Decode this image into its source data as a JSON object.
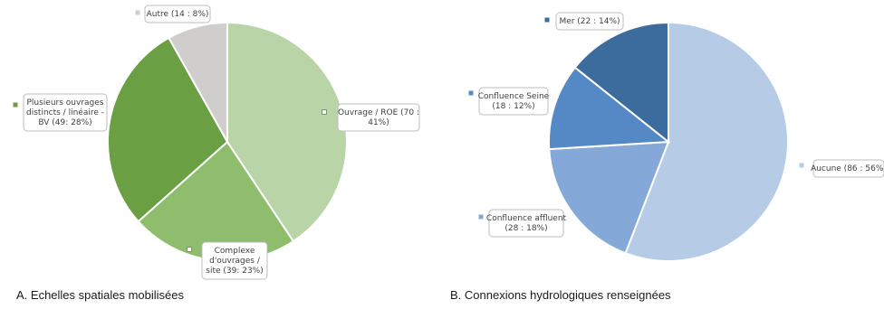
{
  "chart_data": [
    {
      "type": "pie",
      "title": "",
      "caption": "A. Echelles spatiales mobilisées",
      "slices": [
        {
          "label": "Ouvrage / ROE (70 : 41%)",
          "value": 70,
          "percent": 41,
          "color": "#b9d5a8"
        },
        {
          "label": "Complexe d'ouvrages / site (39: 23%)",
          "value": 39,
          "percent": 23,
          "color": "#8ebd6e"
        },
        {
          "label": "Plusieurs ouvrages distincts / linéaire - BV (49: 28%)",
          "value": 49,
          "percent": 28,
          "color": "#6a9f43"
        },
        {
          "label": "Autre (14 : 8%)",
          "value": 14,
          "percent": 8,
          "color": "#d0cecd"
        }
      ]
    },
    {
      "type": "pie",
      "title": "",
      "caption": "B. Connexions hydrologiques renseignées",
      "slices": [
        {
          "label": "Aucune (86 : 56%)",
          "value": 86,
          "percent": 56,
          "color": "#b5cbe6"
        },
        {
          "label": "Confluence affluent (28 : 18%)",
          "value": 28,
          "percent": 18,
          "color": "#84a9d8"
        },
        {
          "label": "Confluence Seine (18 : 12%)",
          "value": 18,
          "percent": 12,
          "color": "#5489c5"
        },
        {
          "label": "Mer (22 : 14%)",
          "value": 22,
          "percent": 14,
          "color": "#3c6b9e"
        }
      ]
    }
  ]
}
